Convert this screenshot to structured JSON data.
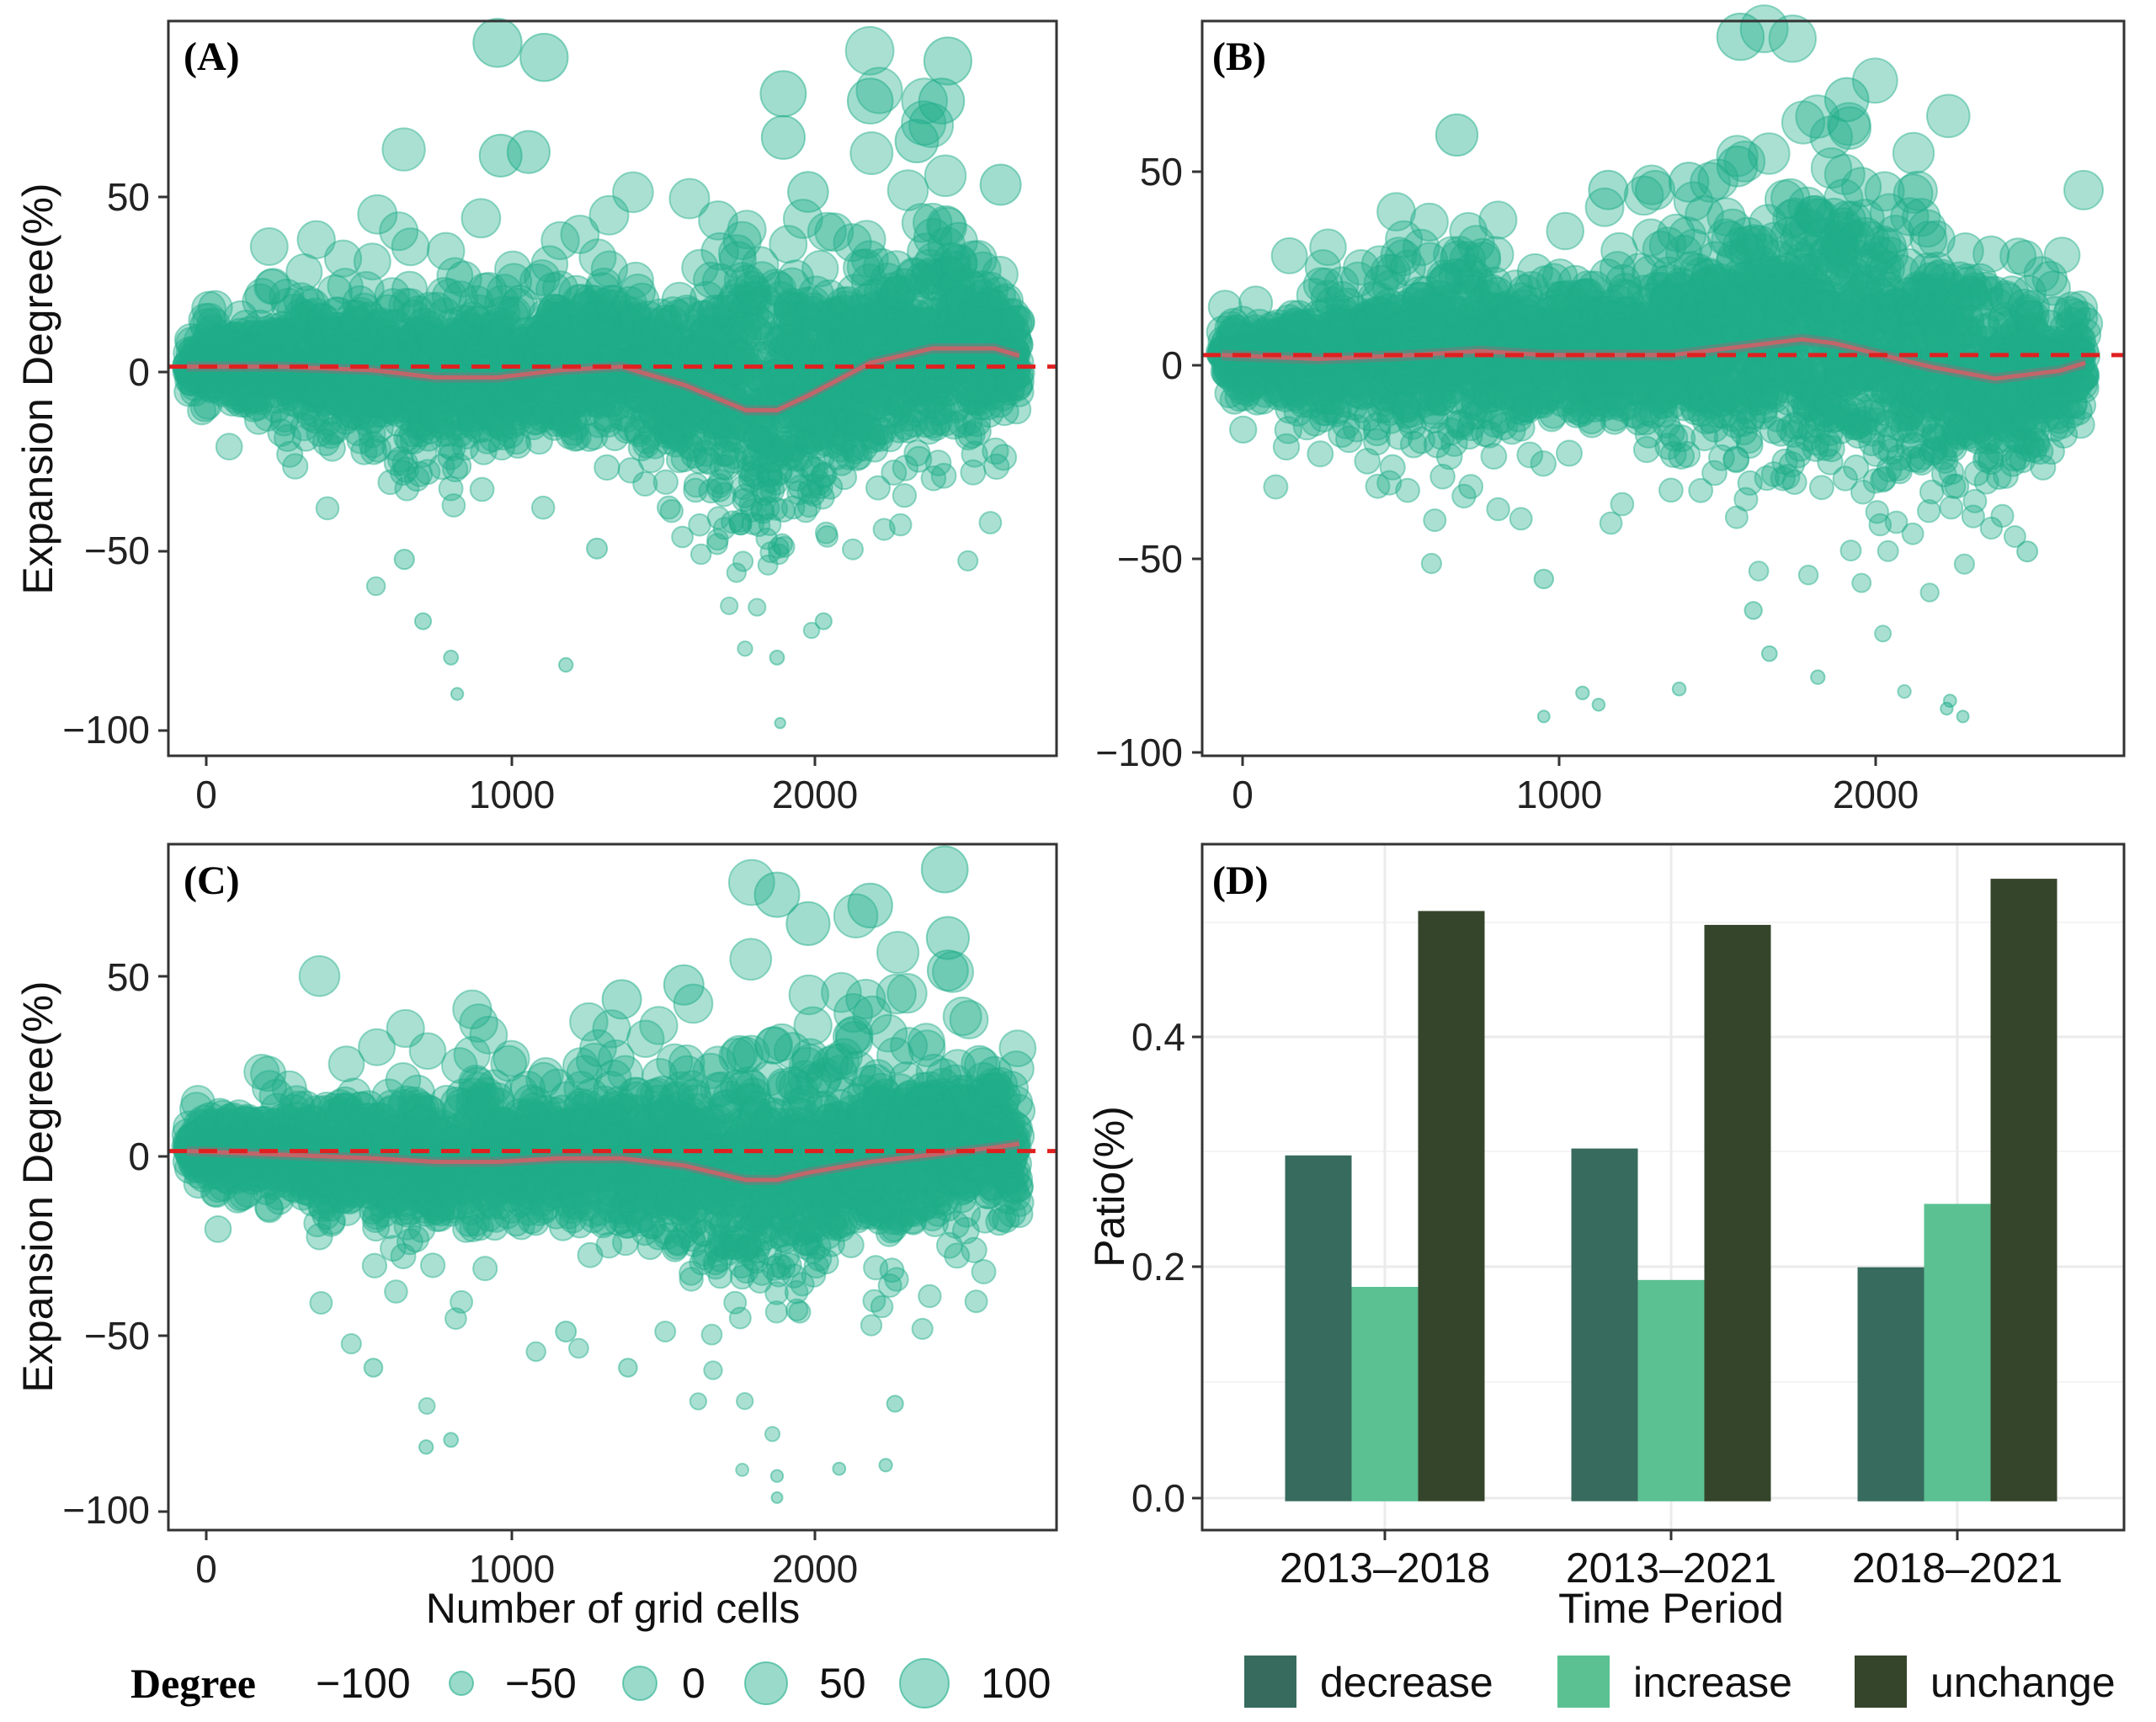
{
  "chart_data": [
    {
      "type": "scatter",
      "panel_label": "(A)",
      "ylabel": "Expansion Degree(%)",
      "xlabel": "",
      "xlim": [
        -60,
        2800
      ],
      "ylim": [
        -107,
        95
      ],
      "xticks": [
        "0",
        "1000",
        "2000"
      ],
      "yticks": [
        "50",
        "0",
        "−50",
        "−100"
      ],
      "reference_line": 0,
      "n_points": 2700,
      "smooth_trend": {
        "x": [
          0,
          300,
          600,
          800,
          1000,
          1200,
          1400,
          1600,
          1800,
          1900,
          2000,
          2200,
          2400,
          2600,
          2680
        ],
        "y": [
          0,
          0,
          -1,
          -3,
          -3,
          -1,
          0,
          -5,
          -12,
          -12,
          -8,
          1,
          5,
          5,
          3
        ]
      },
      "highlight_points": [
        {
          "x": 1000,
          "y": 89
        },
        {
          "x": 1150,
          "y": 85
        },
        {
          "x": 1920,
          "y": 75
        },
        {
          "x": 2450,
          "y": 84
        },
        {
          "x": 2430,
          "y": 73
        },
        {
          "x": 2200,
          "y": 73
        },
        {
          "x": 1920,
          "y": 63
        },
        {
          "x": 1010,
          "y": 58
        },
        {
          "x": 1100,
          "y": 59
        },
        {
          "x": 2620,
          "y": 50
        },
        {
          "x": 2000,
          "y": 48
        },
        {
          "x": 2350,
          "y": 62
        },
        {
          "x": 700,
          "y": -53
        },
        {
          "x": 760,
          "y": -70
        },
        {
          "x": 850,
          "y": -80
        },
        {
          "x": 1900,
          "y": -80
        },
        {
          "x": 1910,
          "y": -98
        },
        {
          "x": 1220,
          "y": -82
        },
        {
          "x": 870,
          "y": -90
        },
        {
          "x": 1320,
          "y": -50
        },
        {
          "x": 2050,
          "y": -70
        }
      ]
    },
    {
      "type": "scatter",
      "panel_label": "(B)",
      "ylabel": "",
      "xlabel": "",
      "xlim": [
        -60,
        2800
      ],
      "ylim": [
        -102,
        85
      ],
      "xticks": [
        "0",
        "1000",
        "2000"
      ],
      "yticks": [
        "50",
        "0",
        "−50",
        "−100"
      ],
      "reference_line": 0,
      "n_points": 2700,
      "smooth_trend": {
        "x": [
          0,
          300,
          600,
          800,
          1000,
          1200,
          1400,
          1600,
          1800,
          1900,
          2000,
          2200,
          2400,
          2600,
          2680
        ],
        "y": [
          0,
          -1,
          0,
          1,
          0,
          0,
          0,
          2,
          4,
          3,
          1,
          -3,
          -6,
          -4,
          -2
        ]
      },
      "highlight_points": [
        {
          "x": 1610,
          "y": 81
        },
        {
          "x": 1940,
          "y": 65
        },
        {
          "x": 730,
          "y": 56
        },
        {
          "x": 1600,
          "y": 48
        },
        {
          "x": 1200,
          "y": 42
        },
        {
          "x": 1450,
          "y": 44
        },
        {
          "x": 1000,
          "y": -57
        },
        {
          "x": 1650,
          "y": -65
        },
        {
          "x": 1700,
          "y": -76
        },
        {
          "x": 1850,
          "y": -82
        },
        {
          "x": 2250,
          "y": -90
        },
        {
          "x": 1000,
          "y": -92
        },
        {
          "x": 1120,
          "y": -86
        },
        {
          "x": 1170,
          "y": -89
        },
        {
          "x": 1420,
          "y": -85
        },
        {
          "x": 2260,
          "y": -88
        },
        {
          "x": 2300,
          "y": -92
        },
        {
          "x": 2500,
          "y": -50
        }
      ]
    },
    {
      "type": "scatter",
      "panel_label": "(C)",
      "ylabel": "Expansion Degree(%)",
      "xlabel": "Number of grid cells",
      "xlim": [
        -60,
        2800
      ],
      "ylim": [
        -105,
        85
      ],
      "xticks": [
        "0",
        "1000",
        "2000"
      ],
      "yticks": [
        "50",
        "0",
        "−50",
        "−100"
      ],
      "reference_line": 0,
      "n_points": 2700,
      "smooth_trend": {
        "x": [
          0,
          300,
          600,
          800,
          1000,
          1200,
          1400,
          1600,
          1800,
          1900,
          2000,
          2200,
          2400,
          2600,
          2680
        ],
        "y": [
          0,
          -1,
          -2,
          -3,
          -3,
          -2,
          -2,
          -4,
          -8,
          -8,
          -6,
          -3,
          -1,
          1,
          2
        ]
      },
      "highlight_points": [
        {
          "x": 2440,
          "y": 78
        },
        {
          "x": 1900,
          "y": 71
        },
        {
          "x": 2200,
          "y": 68
        },
        {
          "x": 2450,
          "y": 59
        },
        {
          "x": 2000,
          "y": 63
        },
        {
          "x": 2450,
          "y": 50
        },
        {
          "x": 1600,
          "y": 46
        },
        {
          "x": 1400,
          "y": 42
        },
        {
          "x": 600,
          "y": -60
        },
        {
          "x": 770,
          "y": -82
        },
        {
          "x": 850,
          "y": -80
        },
        {
          "x": 1900,
          "y": -90
        },
        {
          "x": 1900,
          "y": -96
        },
        {
          "x": 2100,
          "y": -88
        },
        {
          "x": 2250,
          "y": -87
        },
        {
          "x": 1220,
          "y": -50
        },
        {
          "x": 1420,
          "y": -60
        },
        {
          "x": 2280,
          "y": -70
        }
      ]
    },
    {
      "type": "bar",
      "panel_label": "(D)",
      "xlabel": "Time Period",
      "ylabel": "Patio(%)",
      "categories": [
        "2013–2018",
        "2013–2021",
        "2018–2021"
      ],
      "ylim": [
        -0.025,
        0.57
      ],
      "yticks": [
        "0.0",
        "0.2",
        "0.4"
      ],
      "series": [
        {
          "name": "decrease",
          "color": "#376b5e",
          "values": [
            0.3,
            0.306,
            0.203
          ]
        },
        {
          "name": "increase",
          "color": "#5bc192",
          "values": [
            0.186,
            0.192,
            0.258
          ]
        },
        {
          "name": "unchange",
          "color": "#35452b",
          "values": [
            0.512,
            0.5,
            0.54
          ]
        }
      ]
    }
  ],
  "legend_degree": {
    "title": "Degree",
    "entries": [
      {
        "label": "−100",
        "value": -100
      },
      {
        "label": "−50",
        "value": -50
      },
      {
        "label": "0",
        "value": 0
      },
      {
        "label": "50",
        "value": 50
      },
      {
        "label": "100",
        "value": 100
      }
    ]
  },
  "legend_change": {
    "entries": [
      "decrease",
      "increase",
      "unchange"
    ]
  },
  "colors": {
    "point": "#1fae8a",
    "reference_line": "#e02020",
    "trend_line": "#c0666a",
    "trend_band": "#7a7a7a",
    "grid_d": "#ebebeb",
    "frame": "#333333"
  }
}
